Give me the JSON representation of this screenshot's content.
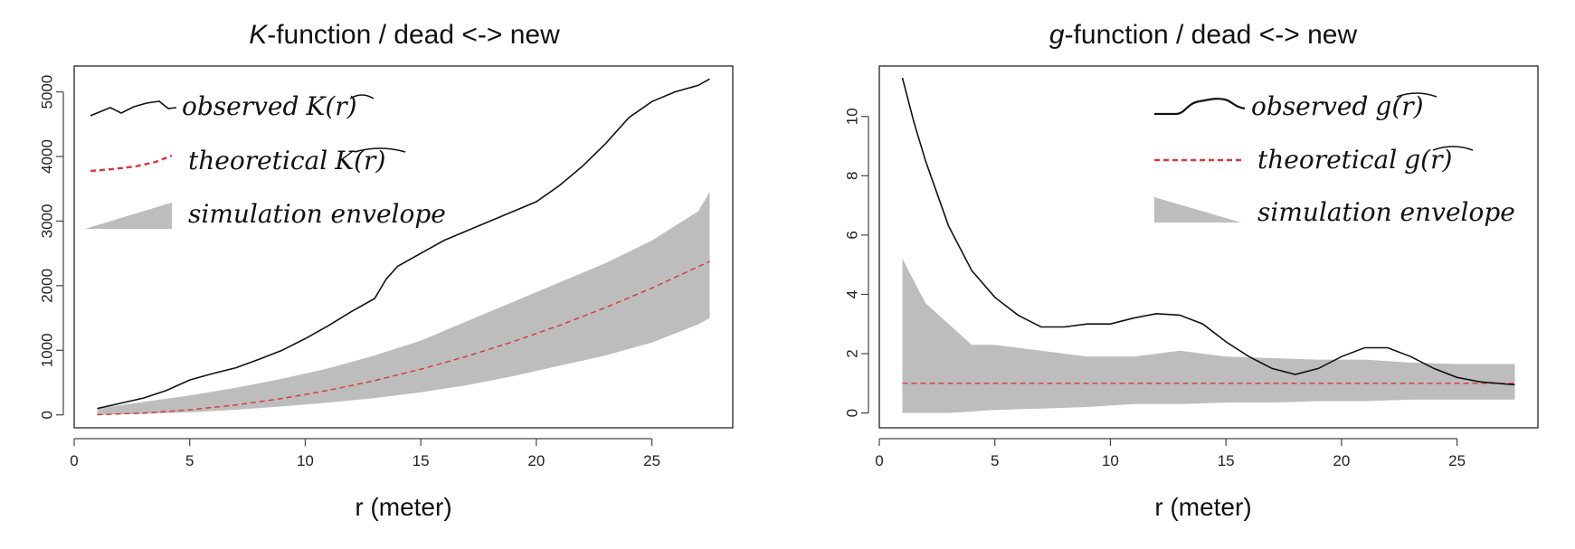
{
  "chart_data": [
    {
      "type": "line",
      "title_prefix": "K",
      "title_rest": "-function / dead <-> new",
      "xlabel": "r (meter)",
      "ylabel": "",
      "xlim": [
        0,
        28.5
      ],
      "ylim": [
        -200,
        5400
      ],
      "xticks": [
        0,
        5,
        10,
        15,
        20,
        25
      ],
      "yticks": [
        0,
        1000,
        2000,
        3000,
        4000,
        5000
      ],
      "grid": false,
      "legend": {
        "placement": "top-left",
        "entries": [
          {
            "text": "observed",
            "math": "K(r)",
            "style": "solid"
          },
          {
            "text": "theoretical",
            "math": "K(r)",
            "style": "dashed"
          },
          {
            "text": "simulation envelope",
            "math": "",
            "style": "band"
          }
        ]
      },
      "series": [
        {
          "role": "observed",
          "x": [
            1,
            2,
            3,
            4,
            5,
            6,
            7,
            8,
            9,
            10,
            11,
            12,
            13,
            13.5,
            14,
            15,
            16,
            17,
            18,
            19,
            20,
            21,
            22,
            23,
            24,
            25,
            26,
            27,
            27.5
          ],
          "values": [
            100,
            180,
            260,
            380,
            540,
            640,
            730,
            860,
            1000,
            1180,
            1380,
            1600,
            1800,
            2100,
            2300,
            2500,
            2700,
            2850,
            3000,
            3150,
            3300,
            3550,
            3850,
            4200,
            4600,
            4850,
            5000,
            5100,
            5200
          ]
        },
        {
          "role": "theoretical",
          "x": [
            1,
            3,
            5,
            7,
            9,
            11,
            13,
            15,
            17,
            19,
            21,
            23,
            25,
            27.5
          ],
          "values": [
            3,
            28,
            79,
            154,
            254,
            380,
            531,
            707,
            908,
            1134,
            1385,
            1662,
            1963,
            2376
          ]
        },
        {
          "role": "envelope",
          "x": [
            1,
            3,
            5,
            7,
            9,
            11,
            13,
            15,
            17,
            19,
            21,
            23,
            25,
            27,
            27.5
          ],
          "lower": [
            0,
            15,
            40,
            80,
            130,
            190,
            260,
            350,
            460,
            600,
            760,
            920,
            1120,
            1400,
            1500
          ],
          "upper": [
            100,
            200,
            300,
            420,
            560,
            720,
            920,
            1150,
            1450,
            1750,
            2050,
            2350,
            2700,
            3150,
            3450
          ]
        }
      ]
    },
    {
      "type": "line",
      "title_prefix": "g",
      "title_rest": "-function / dead <-> new",
      "xlabel": "r (meter)",
      "ylabel": "",
      "xlim": [
        0,
        28.5
      ],
      "ylim": [
        -0.5,
        11.7
      ],
      "xticks": [
        0,
        5,
        10,
        15,
        20,
        25
      ],
      "yticks": [
        0,
        2,
        4,
        6,
        8,
        10
      ],
      "grid": false,
      "legend": {
        "placement": "top-right",
        "entries": [
          {
            "text": "observed",
            "math": "g(r)",
            "style": "solid"
          },
          {
            "text": "theoretical",
            "math": "g(r)",
            "style": "dashed"
          },
          {
            "text": "simulation envelope",
            "math": "",
            "style": "band"
          }
        ]
      },
      "series": [
        {
          "role": "observed",
          "x": [
            1,
            1.5,
            2,
            3,
            4,
            5,
            6,
            7,
            8,
            9,
            10,
            11,
            12,
            13,
            14,
            15,
            16,
            17,
            18,
            19,
            20,
            21,
            22,
            23,
            24,
            25,
            26,
            27.5
          ],
          "values": [
            11.3,
            9.8,
            8.5,
            6.3,
            4.8,
            3.9,
            3.3,
            2.9,
            2.9,
            3.0,
            3.0,
            3.2,
            3.35,
            3.3,
            3.0,
            2.4,
            1.9,
            1.5,
            1.3,
            1.5,
            1.9,
            2.2,
            2.2,
            1.9,
            1.5,
            1.2,
            1.05,
            0.95
          ]
        },
        {
          "role": "theoretical",
          "x": [
            1,
            27.5
          ],
          "values": [
            1,
            1
          ]
        },
        {
          "role": "envelope",
          "x": [
            1,
            2,
            3,
            4,
            5,
            7,
            9,
            11,
            13,
            15,
            17,
            19,
            21,
            23,
            25,
            27.5
          ],
          "lower": [
            0,
            0,
            0,
            0.05,
            0.1,
            0.15,
            0.2,
            0.3,
            0.3,
            0.35,
            0.35,
            0.4,
            0.4,
            0.45,
            0.45,
            0.45
          ],
          "upper": [
            5.2,
            3.7,
            3.0,
            2.3,
            2.3,
            2.1,
            1.9,
            1.9,
            2.1,
            1.9,
            1.85,
            1.8,
            1.8,
            1.7,
            1.65,
            1.65
          ]
        }
      ]
    }
  ]
}
